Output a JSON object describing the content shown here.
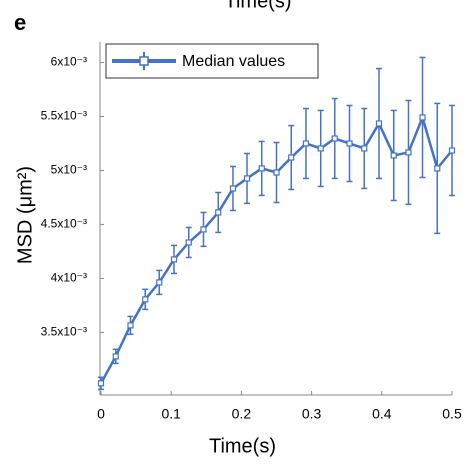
{
  "panel_label": "e",
  "cropped_label": "Time(s)",
  "chart_data": {
    "type": "errorbar-line",
    "xlabel": "Time(s)",
    "ylabel": "MSD (μm²)",
    "xlim": [
      0,
      0.5
    ],
    "xticks": [
      0,
      0.1,
      0.2,
      0.3,
      0.4,
      0.5
    ],
    "ylim": [
      0.00292,
      0.00619
    ],
    "yticks": [
      {
        "value": 0.0035,
        "label": "3.5x10⁻³"
      },
      {
        "value": 0.004,
        "label": "4x10⁻³"
      },
      {
        "value": 0.0045,
        "label": "4.5x10⁻³"
      },
      {
        "value": 0.005,
        "label": "5x10⁻³"
      },
      {
        "value": 0.0055,
        "label": "5.5x10⁻³"
      },
      {
        "value": 0.006,
        "label": "6x10⁻³"
      }
    ],
    "legend": "upper left",
    "series": [
      {
        "name": "Median values",
        "color": "#4472c4",
        "x": [
          0,
          0.021,
          0.042,
          0.063,
          0.083,
          0.104,
          0.125,
          0.146,
          0.167,
          0.188,
          0.208,
          0.229,
          0.25,
          0.271,
          0.292,
          0.313,
          0.333,
          0.354,
          0.375,
          0.396,
          0.417,
          0.438,
          0.458,
          0.479,
          0.5
        ],
        "values": [
          0.003028,
          0.003278,
          0.003565,
          0.003806,
          0.003963,
          0.004176,
          0.004333,
          0.004454,
          0.004611,
          0.004833,
          0.004926,
          0.005019,
          0.004981,
          0.00512,
          0.00525,
          0.005204,
          0.005296,
          0.00525,
          0.005204,
          0.005435,
          0.005139,
          0.005167,
          0.005491,
          0.005019,
          0.005185
        ],
        "errors": [
          5.6e-05,
          6.5e-05,
          8.3e-05,
          9.3e-05,
          0.000111,
          0.00013,
          0.000139,
          0.000157,
          0.000185,
          0.000204,
          0.000231,
          0.00025,
          0.000278,
          0.000296,
          0.000324,
          0.000352,
          0.00037,
          0.000352,
          0.00037,
          0.000509,
          0.000417,
          0.000481,
          0.000556,
          0.000602,
          0.000417
        ]
      }
    ]
  }
}
